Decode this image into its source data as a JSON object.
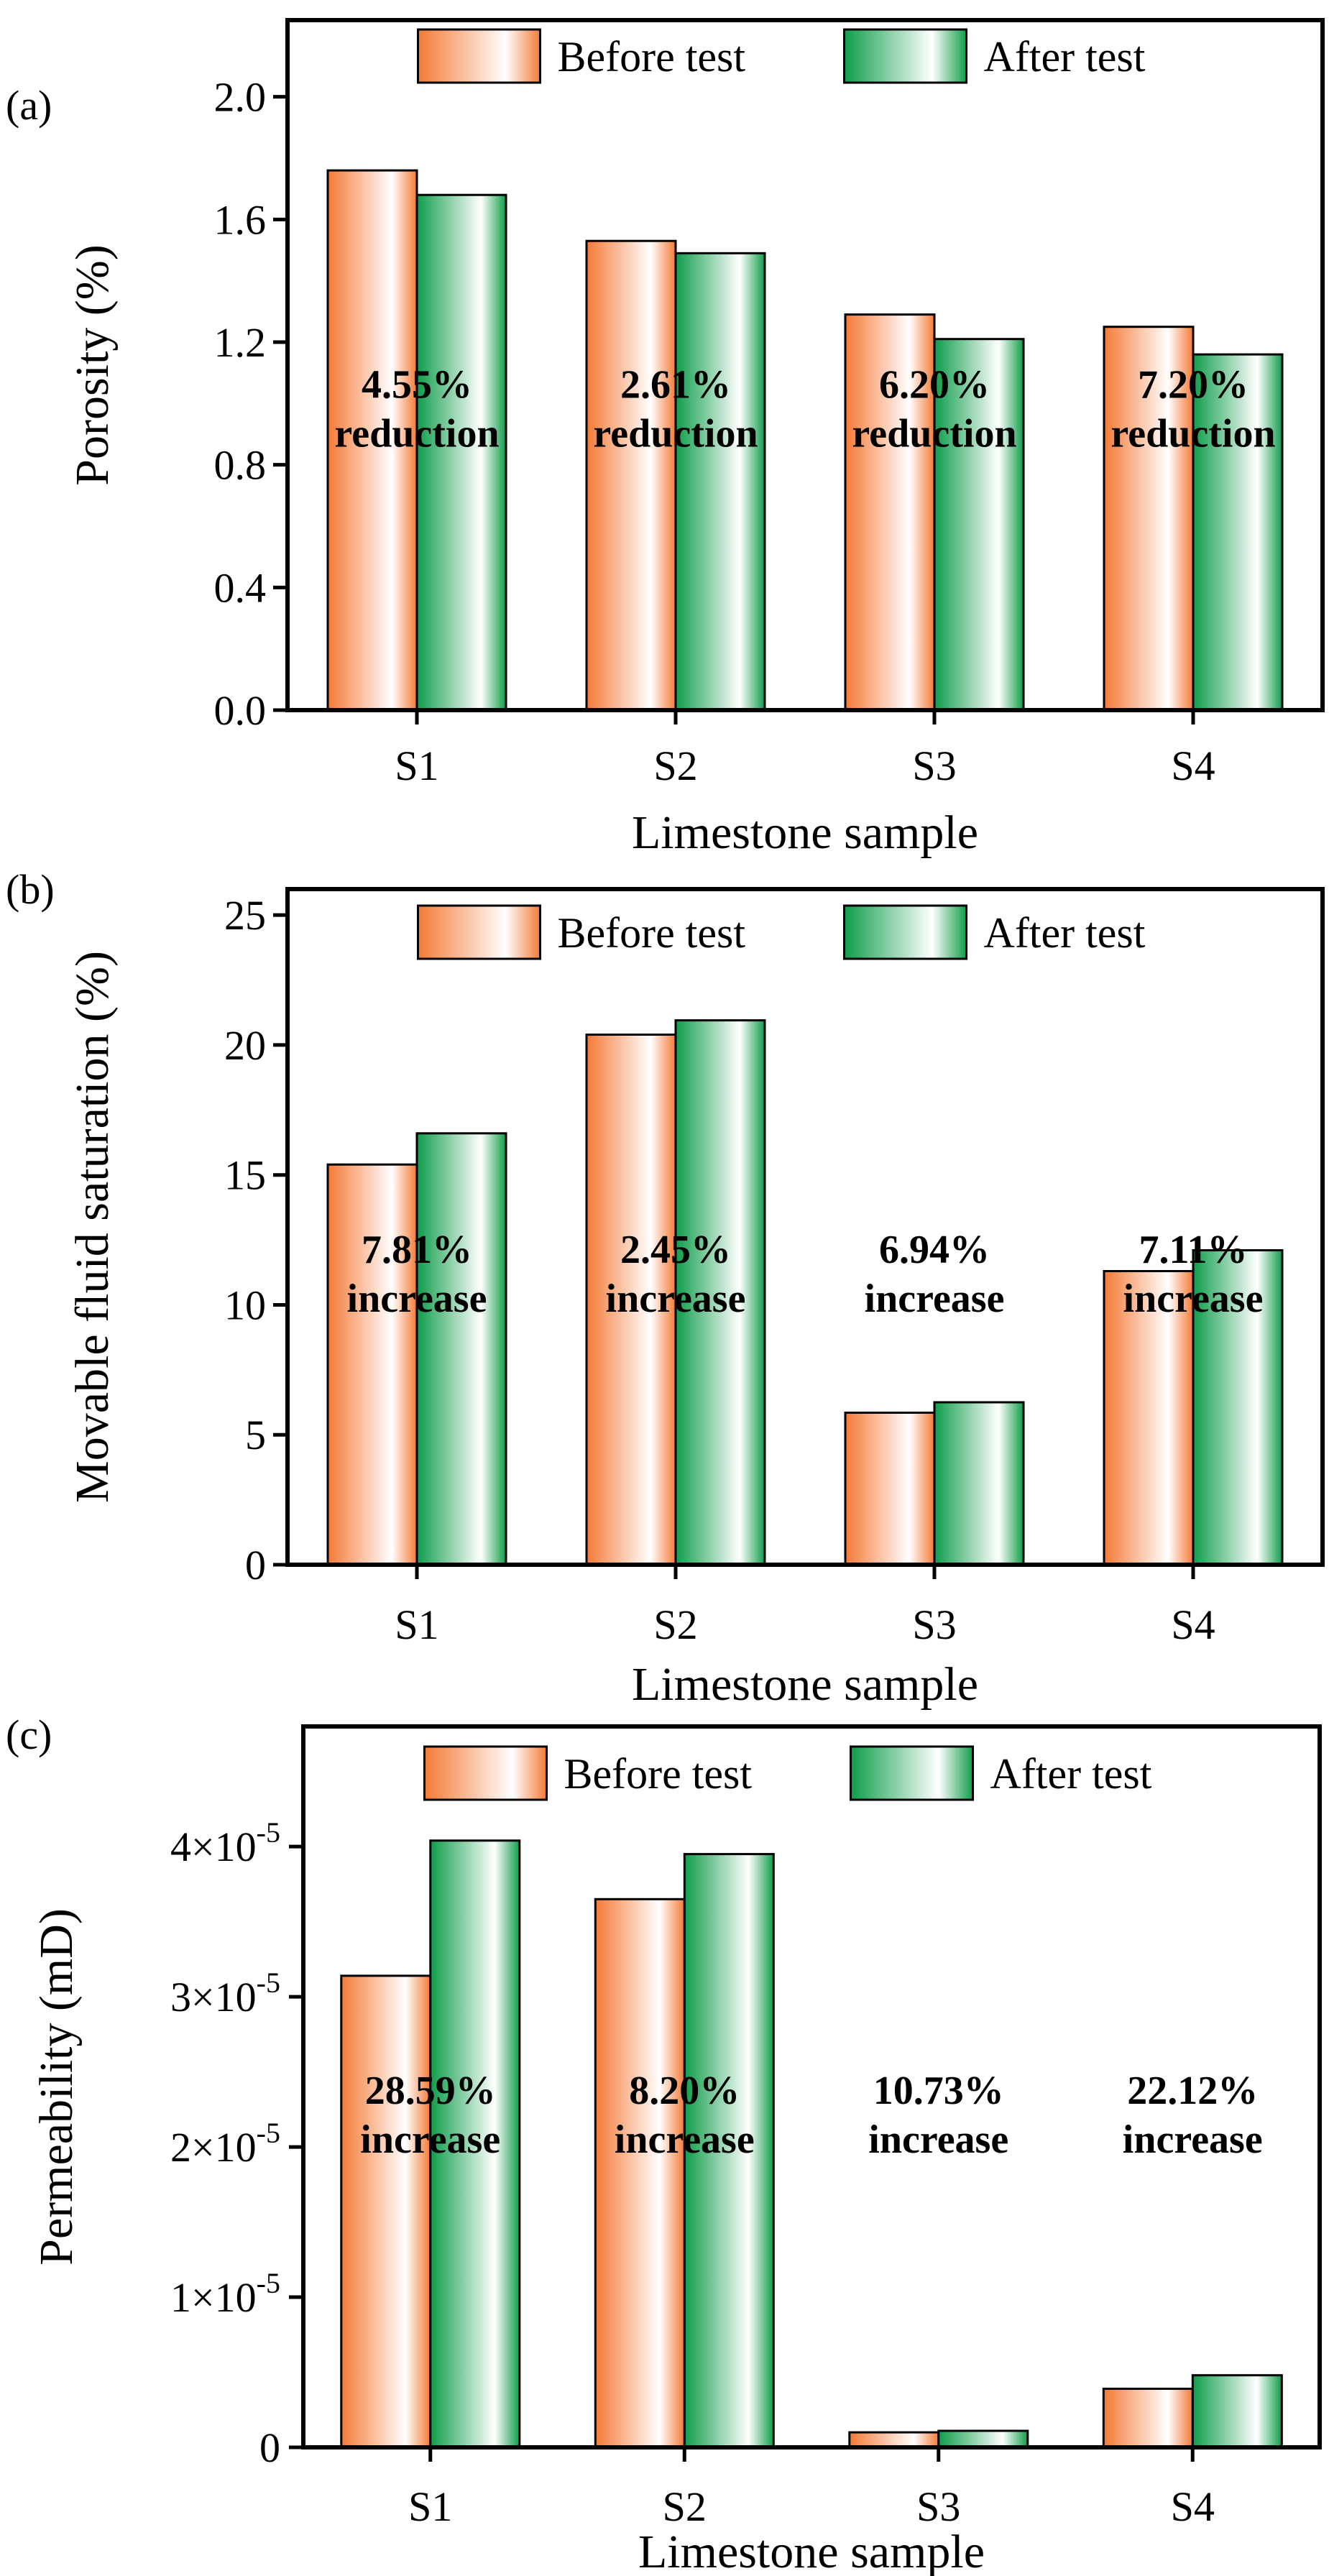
{
  "chart_data": [
    {
      "type": "bar",
      "panel_label": "(a)",
      "title": "",
      "xlabel": "Limestone sample",
      "ylabel": "Porosity (%)",
      "categories": [
        "S1",
        "S2",
        "S3",
        "S4"
      ],
      "series": [
        {
          "name": "Before test",
          "values": [
            1.76,
            1.53,
            1.29,
            1.25
          ]
        },
        {
          "name": "After test",
          "values": [
            1.68,
            1.49,
            1.21,
            1.16
          ]
        }
      ],
      "ylim": [
        0,
        2.25
      ],
      "yticks": [
        0.0,
        0.4,
        0.8,
        1.2,
        1.6,
        2.0
      ],
      "ytick_labels": [
        "0.0",
        "0.4",
        "0.8",
        "1.2",
        "1.6",
        "2.0"
      ],
      "annotations": [
        {
          "line1": "4.55%",
          "line2": "reduction"
        },
        {
          "line1": "2.61%",
          "line2": "reduction"
        },
        {
          "line1": "6.20%",
          "line2": "reduction"
        },
        {
          "line1": "7.20%",
          "line2": "reduction"
        }
      ],
      "annotation_level": 1.0,
      "legend": "top-center"
    },
    {
      "type": "bar",
      "panel_label": "(b)",
      "title": "",
      "xlabel": "Limestone sample",
      "ylabel": "Movable fluid saturation (%)",
      "categories": [
        "S1",
        "S2",
        "S3",
        "S4"
      ],
      "series": [
        {
          "name": "Before test",
          "values": [
            15.4,
            20.4,
            5.85,
            11.3
          ]
        },
        {
          "name": "After test",
          "values": [
            16.6,
            20.95,
            6.25,
            12.1
          ]
        }
      ],
      "ylim": [
        0,
        26
      ],
      "yticks": [
        0,
        5,
        10,
        15,
        20,
        25
      ],
      "ytick_labels": [
        "0",
        "5",
        "10",
        "15",
        "20",
        "25"
      ],
      "annotations": [
        {
          "line1": "7.81%",
          "line2": "increase"
        },
        {
          "line1": "2.45%",
          "line2": "increase"
        },
        {
          "line1": "6.94%",
          "line2": "increase"
        },
        {
          "line1": "7.11%",
          "line2": "increase"
        }
      ],
      "annotation_level": 11.4,
      "legend": "top-center"
    },
    {
      "type": "bar",
      "panel_label": "(c)",
      "title": "",
      "xlabel": "Limestone sample",
      "ylabel": "Permeability (mD)",
      "categories": [
        "S1",
        "S2",
        "S3",
        "S4"
      ],
      "series": [
        {
          "name": "Before test",
          "values": [
            3.14e-05,
            3.65e-05,
            1e-06,
            3.9e-06
          ]
        },
        {
          "name": "After test",
          "values": [
            4.04e-05,
            3.95e-05,
            1.1e-06,
            4.8e-06
          ]
        }
      ],
      "ylim": [
        0,
        4.8e-05
      ],
      "yticks": [
        0,
        1e-05,
        2e-05,
        3e-05,
        4e-05
      ],
      "ytick_labels": [
        {
          "base": "0",
          "exp": ""
        },
        {
          "base": "1×10",
          "exp": "-5"
        },
        {
          "base": "2×10",
          "exp": "-5"
        },
        {
          "base": "3×10",
          "exp": "-5"
        },
        {
          "base": "4×10",
          "exp": "-5"
        }
      ],
      "annotations": [
        {
          "line1": "28.59%",
          "line2": "increase"
        },
        {
          "line1": "8.20%",
          "line2": "increase"
        },
        {
          "line1": "10.73%",
          "line2": "increase"
        },
        {
          "line1": "22.12%",
          "line2": "increase"
        }
      ],
      "annotation_level": 2.25e-05,
      "legend": "top-center"
    }
  ],
  "colors": {
    "before_edge": "#f47a36",
    "before_mid": "#ffffff",
    "after_edge": "#0f9d4a",
    "after_mid": "#ffffff",
    "frame": "#000000"
  }
}
